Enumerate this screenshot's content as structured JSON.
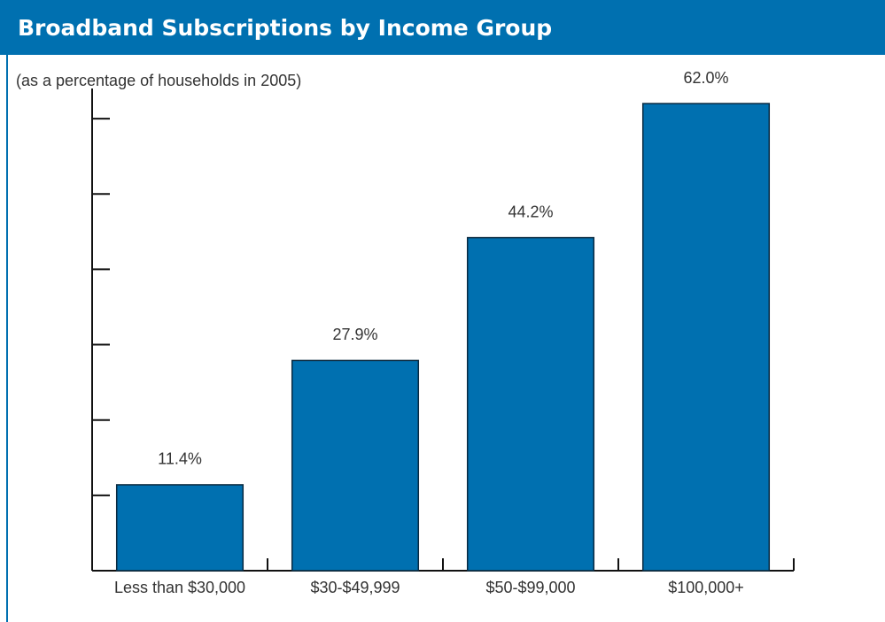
{
  "chart_data": {
    "type": "bar",
    "title": "Broadband Subscriptions by Income Group",
    "subtitle": "(as a percentage of households in 2005)",
    "categories": [
      "Less than $30,000",
      "$30-$49,999",
      "$50-$99,000",
      "$100,000+"
    ],
    "values": [
      11.4,
      27.9,
      44.2,
      62.0
    ],
    "value_labels": [
      "11.4%",
      "27.9%",
      "44.2%",
      "62.0%"
    ],
    "color": "#0070b0",
    "ylim": [
      0,
      64
    ],
    "yticks": [
      0,
      10,
      20,
      30,
      40,
      50,
      60
    ],
    "grid": false
  }
}
